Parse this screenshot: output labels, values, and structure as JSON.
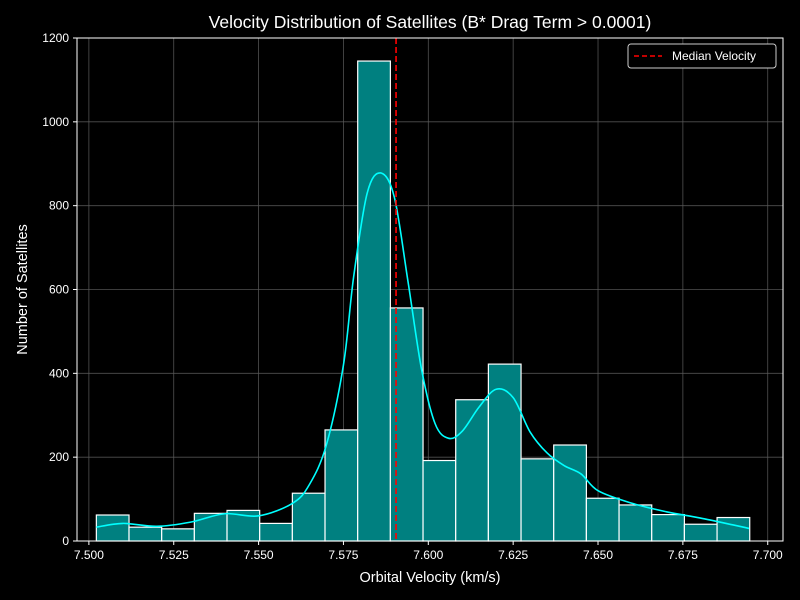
{
  "chart_data": {
    "type": "bar",
    "title": "Velocity Distribution of Satellites (B* Drag Term > 0.0001)",
    "xlabel": "Orbital Velocity (km/s)",
    "ylabel": "Number of Satellites",
    "xlim": [
      7.4965,
      7.7045
    ],
    "ylim": [
      0,
      1200
    ],
    "x_ticks": [
      7.5,
      7.525,
      7.55,
      7.575,
      7.6,
      7.625,
      7.65,
      7.675,
      7.7
    ],
    "x_tick_labels": [
      "7.500",
      "7.525",
      "7.550",
      "7.575",
      "7.600",
      "7.625",
      "7.650",
      "7.675",
      "7.700"
    ],
    "y_ticks": [
      0,
      200,
      400,
      600,
      800,
      1000,
      1200
    ],
    "y_tick_labels": [
      "0",
      "200",
      "400",
      "600",
      "800",
      "1000",
      "1200"
    ],
    "grid": true,
    "bins": {
      "start": 7.5022,
      "width": 0.009625,
      "counts": [
        62,
        33,
        29,
        66,
        73,
        42,
        114,
        265,
        1145,
        556,
        192,
        337,
        422,
        196,
        229,
        102,
        86,
        63,
        40,
        56
      ]
    },
    "kde": {
      "x": [
        7.5022,
        7.51,
        7.52,
        7.53,
        7.54,
        7.55,
        7.56,
        7.565,
        7.57,
        7.575,
        7.578,
        7.582,
        7.586,
        7.59,
        7.594,
        7.598,
        7.602,
        7.606,
        7.61,
        7.615,
        7.62,
        7.625,
        7.63,
        7.635,
        7.64,
        7.645,
        7.65,
        7.66,
        7.67,
        7.68,
        7.69,
        7.6945
      ],
      "y": [
        33,
        42,
        35,
        45,
        65,
        60,
        90,
        135,
        230,
        420,
        630,
        830,
        878,
        820,
        620,
        410,
        280,
        245,
        262,
        320,
        362,
        342,
        260,
        210,
        180,
        160,
        120,
        90,
        70,
        55,
        38,
        30
      ]
    },
    "median_line": {
      "x": 7.5905,
      "label": "Median Velocity"
    },
    "legend_position": "top-right",
    "colors": {
      "bar_fill": "#008080",
      "bar_edge": "#ffffff",
      "kde_line": "#00ffff",
      "median_line": "#ff0000",
      "background": "#000000",
      "text": "#ffffff",
      "grid": "#5a5a5a"
    }
  }
}
